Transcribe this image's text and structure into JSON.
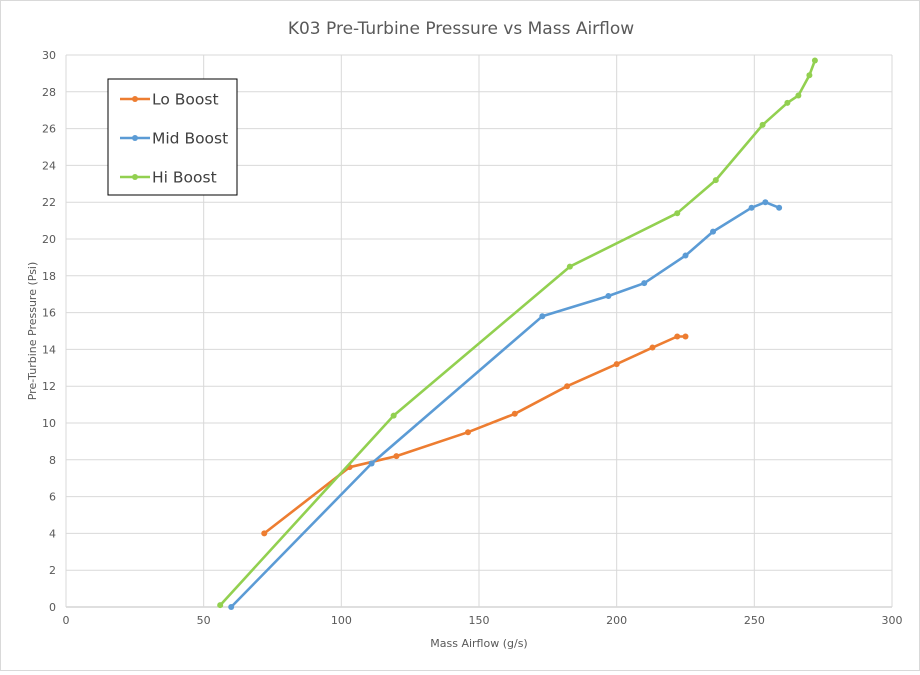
{
  "chart_data": {
    "type": "line",
    "title": "K03 Pre-Turbine Pressure vs Mass Airflow",
    "xlabel": "Mass Airflow (g/s)",
    "ylabel": "Pre-Turbine Pressure (Psi)",
    "xlim": [
      0,
      300
    ],
    "ylim": [
      0,
      30
    ],
    "xticks": [
      "0",
      "50",
      "100",
      "150",
      "200",
      "250",
      "300"
    ],
    "yticks": [
      "0",
      "2",
      "4",
      "6",
      "8",
      "10",
      "12",
      "14",
      "16",
      "18",
      "20",
      "22",
      "24",
      "26",
      "28",
      "30"
    ],
    "grid": true,
    "legend": "top-left",
    "series": [
      {
        "name": "Lo Boost",
        "color": "#ed7d31",
        "points": [
          [
            72,
            4.0
          ],
          [
            103,
            7.6
          ],
          [
            120,
            8.2
          ],
          [
            146,
            9.5
          ],
          [
            163,
            10.5
          ],
          [
            182,
            12.0
          ],
          [
            200,
            13.2
          ],
          [
            213,
            14.1
          ],
          [
            222,
            14.7
          ],
          [
            225,
            14.7
          ]
        ]
      },
      {
        "name": "Mid Boost",
        "color": "#5b9bd5",
        "points": [
          [
            60,
            0.0
          ],
          [
            111,
            7.8
          ],
          [
            173,
            15.8
          ],
          [
            197,
            16.9
          ],
          [
            210,
            17.6
          ],
          [
            225,
            19.1
          ],
          [
            235,
            20.4
          ],
          [
            249,
            21.7
          ],
          [
            254,
            22.0
          ],
          [
            259,
            21.7
          ]
        ]
      },
      {
        "name": "Hi Boost",
        "color": "#92d050",
        "points": [
          [
            56,
            0.1
          ],
          [
            119,
            10.4
          ],
          [
            183,
            18.5
          ],
          [
            222,
            21.4
          ],
          [
            236,
            23.2
          ],
          [
            253,
            26.2
          ],
          [
            262,
            27.4
          ],
          [
            266,
            27.8
          ],
          [
            270,
            28.9
          ],
          [
            272,
            29.7
          ]
        ]
      }
    ]
  }
}
